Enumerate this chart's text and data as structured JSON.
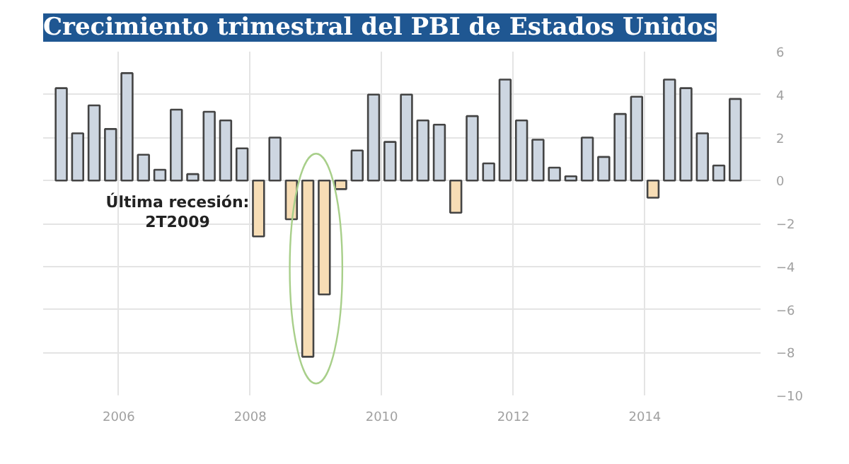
{
  "chart_data": {
    "type": "bar",
    "title": "Crecimiento trimestral del PBI de Estados Unidos",
    "x": [
      2005.125,
      2005.375,
      2005.625,
      2005.875,
      2006.125,
      2006.375,
      2006.625,
      2006.875,
      2007.125,
      2007.375,
      2007.625,
      2007.875,
      2008.125,
      2008.375,
      2008.625,
      2008.875,
      2009.125,
      2009.375,
      2009.625,
      2009.875,
      2010.125,
      2010.375,
      2010.625,
      2010.875,
      2011.125,
      2011.375,
      2011.625,
      2011.875,
      2012.125,
      2012.375,
      2012.625,
      2012.875,
      2013.125,
      2013.375,
      2013.625,
      2013.875,
      2014.125,
      2014.375,
      2014.625,
      2014.875,
      2015.125,
      2015.375
    ],
    "values": [
      4.3,
      2.2,
      3.5,
      2.4,
      5.0,
      1.2,
      0.5,
      3.3,
      0.3,
      3.2,
      2.8,
      1.5,
      -2.6,
      2.0,
      -1.8,
      -8.2,
      -5.3,
      -0.4,
      1.4,
      4.0,
      1.8,
      4.0,
      2.8,
      2.6,
      -1.5,
      3.0,
      0.8,
      4.7,
      2.8,
      1.9,
      0.6,
      0.2,
      2.0,
      1.1,
      3.1,
      3.9,
      -0.8,
      4.7,
      4.3,
      2.2,
      0.7,
      3.8
    ],
    "colors": [
      "#cdd6e1",
      "#cdd6e1",
      "#cdd6e1",
      "#cdd6e1",
      "#cdd6e1",
      "#cdd6e1",
      "#cdd6e1",
      "#cdd6e1",
      "#cdd6e1",
      "#cdd6e1",
      "#cdd6e1",
      "#cdd6e1",
      "#f7ddb5",
      "#cdd6e1",
      "#f7ddb5",
      "#f7ddb5",
      "#f7ddb5",
      "#f7ddb5",
      "#cdd6e1",
      "#cdd6e1",
      "#cdd6e1",
      "#cdd6e1",
      "#cdd6e1",
      "#cdd6e1",
      "#f7ddb5",
      "#cdd6e1",
      "#cdd6e1",
      "#cdd6e1",
      "#cdd6e1",
      "#cdd6e1",
      "#cdd6e1",
      "#cdd6e1",
      "#cdd6e1",
      "#cdd6e1",
      "#cdd6e1",
      "#cdd6e1",
      "#f7ddb5",
      "#cdd6e1",
      "#cdd6e1",
      "#cdd6e1",
      "#cdd6e1",
      "#cdd6e1"
    ],
    "xlim": [
      2004.85,
      2015.76
    ],
    "xticks": [
      2006,
      2008,
      2010,
      2012,
      2014
    ],
    "ylim": [
      -10,
      6
    ],
    "yticks": [
      6,
      4,
      2,
      0,
      -2,
      -4,
      -6,
      -8,
      -10
    ],
    "grid": true,
    "annotations": [
      "Última recesión:\n2T2009"
    ]
  }
}
